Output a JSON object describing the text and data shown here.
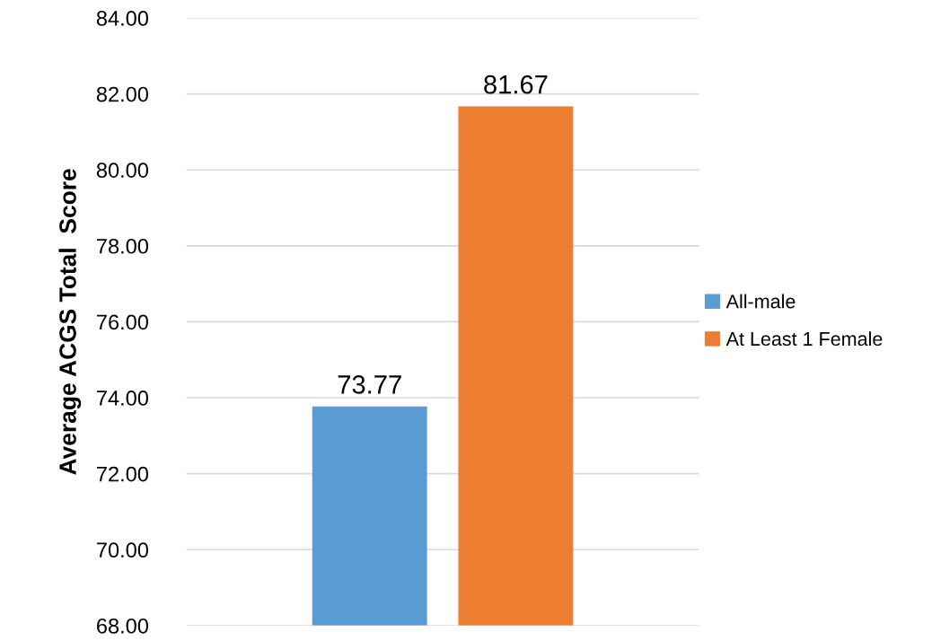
{
  "chart_data": {
    "type": "bar",
    "ylabel": "Average ACGS Total  Score",
    "categories": [
      null
    ],
    "series": [
      {
        "name": "All-male",
        "color": "#5b9bd5",
        "values": [
          73.77
        ]
      },
      {
        "name": "At Least 1 Female",
        "color": "#ed7d31",
        "values": [
          81.67
        ]
      }
    ],
    "ylim": [
      68,
      84
    ],
    "yticks": [
      {
        "value": 68,
        "label": "68.00"
      },
      {
        "value": 70,
        "label": "70.00"
      },
      {
        "value": 72,
        "label": "72.00"
      },
      {
        "value": 74,
        "label": "74.00"
      },
      {
        "value": 76,
        "label": "76.00"
      },
      {
        "value": 78,
        "label": "78.00"
      },
      {
        "value": 80,
        "label": "80.00"
      },
      {
        "value": 82,
        "label": "82.00"
      },
      {
        "value": 84,
        "label": "84.00"
      }
    ],
    "grid": "y",
    "legend": "right",
    "data_labels": true
  }
}
